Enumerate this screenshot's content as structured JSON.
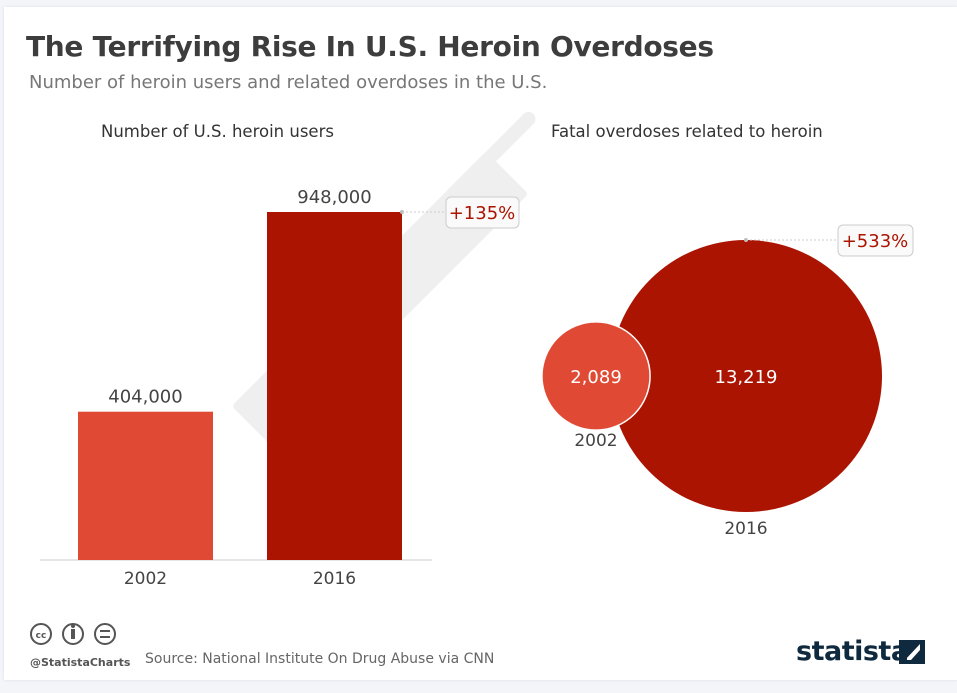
{
  "title": "The Terrifying Rise In U.S. Heroin Overdoses",
  "subtitle": "Number of heroin users and related overdoses in the U.S.",
  "chart_data": [
    {
      "type": "bar",
      "title": "Number of U.S. heroin users",
      "categories": [
        "2002",
        "2016"
      ],
      "values": [
        404000,
        948000
      ],
      "labels": [
        "404,000",
        "948,000"
      ],
      "annotation": "+135%",
      "colors": [
        "#e04a34",
        "#ab1400"
      ]
    },
    {
      "type": "bubble",
      "title": "Fatal overdoses related to heroin",
      "categories": [
        "2002",
        "2016"
      ],
      "values": [
        2089,
        13219
      ],
      "labels": [
        "2,089",
        "13,219"
      ],
      "annotation": "+533%",
      "colors": [
        "#e04a34",
        "#ab1400"
      ]
    }
  ],
  "footer": {
    "handle": "@StatistaCharts",
    "source": "Source: National Institute On Drug Abuse via CNN",
    "brand": "statista",
    "license_icons": [
      "cc-icon",
      "by-icon",
      "nd-icon"
    ]
  }
}
